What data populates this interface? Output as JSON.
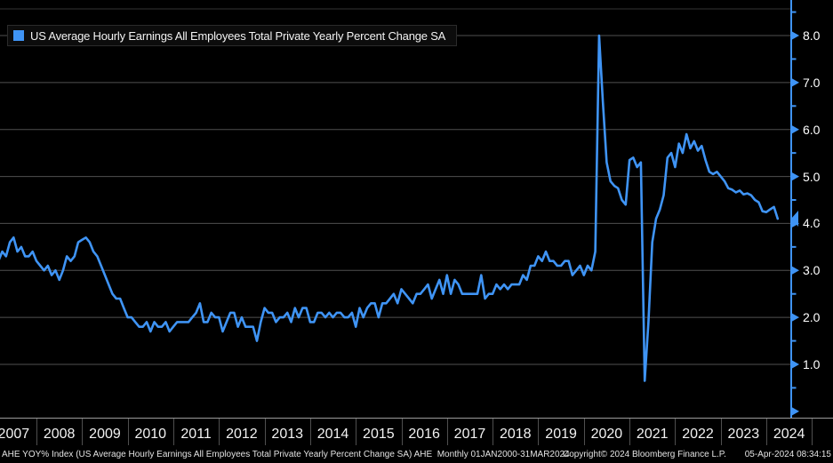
{
  "legend": {
    "label": "US Average Hourly Earnings All Employees Total Private Yearly Percent Change SA"
  },
  "y_axis": {
    "tick_labels": [
      "8.0",
      "7.0",
      "6.0",
      "5.0",
      "4.0",
      "3.0",
      "2.0",
      "1.0"
    ],
    "minor_tick_interval": 0.5,
    "last_price_label": "4.1"
  },
  "x_axis": {
    "years": [
      "2007",
      "2008",
      "2009",
      "2010",
      "2011",
      "2012",
      "2013",
      "2014",
      "2015",
      "2016",
      "2017",
      "2018",
      "2019",
      "2020",
      "2021",
      "2022",
      "2023",
      "2024"
    ]
  },
  "footer": {
    "left": "AHE YOY% Index (US Average Hourly Earnings All Employees Total Private Yearly Percent Change SA) AHE  Monthly 01JAN2000-31MAR2024",
    "copyright": "Copyright© 2024 Bloomberg Finance L.P.",
    "timestamp": "05-Apr-2024 08:34:15"
  },
  "colors": {
    "line": "#3f94f5",
    "grid": "#4f4f4f",
    "frame": "#333333",
    "axis_text": "#ffffff",
    "background": "#000000",
    "tag_text": "#000000"
  },
  "chart_data": {
    "type": "line",
    "title": "US Average Hourly Earnings All Employees Total Private Yearly Percent Change SA",
    "series_name": "AHE YOY% Index",
    "unit": "percent",
    "frequency": "monthly",
    "x_start": "2007-02",
    "x_end": "2024-03",
    "categories": [
      "2007",
      "2008",
      "2009",
      "2010",
      "2011",
      "2012",
      "2013",
      "2014",
      "2015",
      "2016",
      "2017",
      "2018",
      "2019",
      "2020",
      "2021",
      "2022",
      "2023",
      "2024"
    ],
    "values": [
      3.2,
      3.4,
      3.3,
      3.6,
      3.7,
      3.4,
      3.5,
      3.3,
      3.3,
      3.4,
      3.2,
      3.1,
      3.0,
      3.1,
      2.9,
      3.0,
      2.8,
      3.0,
      3.3,
      3.2,
      3.3,
      3.6,
      3.65,
      3.7,
      3.6,
      3.4,
      3.3,
      3.1,
      2.9,
      2.7,
      2.5,
      2.4,
      2.4,
      2.2,
      2.0,
      2.0,
      1.9,
      1.8,
      1.8,
      1.9,
      1.7,
      1.9,
      1.8,
      1.8,
      1.9,
      1.7,
      1.8,
      1.9,
      1.9,
      1.9,
      1.9,
      2.0,
      2.1,
      2.3,
      1.9,
      1.9,
      2.1,
      2.0,
      2.0,
      1.7,
      1.9,
      2.1,
      2.1,
      1.8,
      2.0,
      1.8,
      1.8,
      1.8,
      1.5,
      1.9,
      2.2,
      2.1,
      2.1,
      1.9,
      2.0,
      2.0,
      2.1,
      1.9,
      2.2,
      2.0,
      2.2,
      2.2,
      1.9,
      1.9,
      2.1,
      2.1,
      2.0,
      2.1,
      2.0,
      2.1,
      2.1,
      2.0,
      2.0,
      2.1,
      1.8,
      2.2,
      2.0,
      2.2,
      2.3,
      2.3,
      2.0,
      2.3,
      2.3,
      2.4,
      2.5,
      2.3,
      2.6,
      2.5,
      2.4,
      2.3,
      2.5,
      2.5,
      2.6,
      2.7,
      2.4,
      2.6,
      2.8,
      2.5,
      2.9,
      2.5,
      2.8,
      2.7,
      2.5,
      2.5,
      2.5,
      2.5,
      2.5,
      2.9,
      2.4,
      2.5,
      2.5,
      2.7,
      2.6,
      2.7,
      2.6,
      2.7,
      2.7,
      2.7,
      2.9,
      2.8,
      3.1,
      3.1,
      3.3,
      3.2,
      3.4,
      3.2,
      3.2,
      3.1,
      3.1,
      3.2,
      3.2,
      2.9,
      3.0,
      3.1,
      2.9,
      3.1,
      3.0,
      3.4,
      8.0,
      6.6,
      5.3,
      4.9,
      4.8,
      4.75,
      4.5,
      4.4,
      5.35,
      5.4,
      5.2,
      5.3,
      0.65,
      1.9,
      3.6,
      4.1,
      4.3,
      4.6,
      5.4,
      5.5,
      5.2,
      5.7,
      5.5,
      5.9,
      5.6,
      5.75,
      5.55,
      5.65,
      5.35,
      5.1,
      5.05,
      5.1,
      5.0,
      4.9,
      4.75,
      4.72,
      4.66,
      4.7,
      4.62,
      4.64,
      4.6,
      4.5,
      4.45,
      4.26,
      4.24,
      4.3,
      4.35,
      4.1
    ],
    "last_value": 4.1,
    "y_ticks": [
      1,
      2,
      3,
      4,
      5,
      6,
      7,
      8
    ],
    "ylim": [
      -0.13,
      8.57
    ],
    "grid": "horizontal",
    "legend_position": "top-left"
  }
}
